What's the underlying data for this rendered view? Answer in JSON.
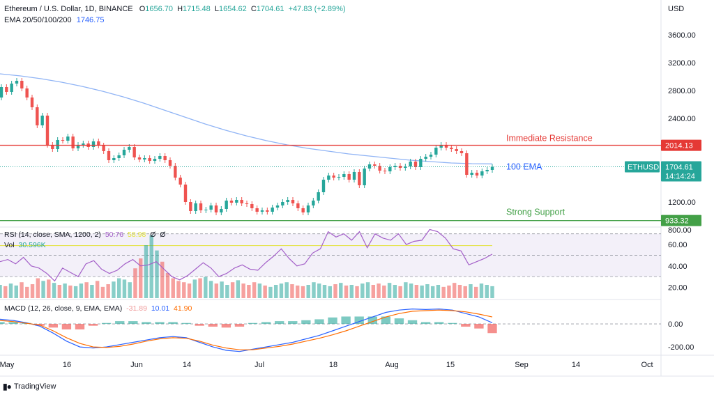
{
  "header": {
    "symbol": "Ethereum / U.S. Dollar, 1D, BINANCE",
    "o_label": "O",
    "o": "1656.70",
    "h_label": "H",
    "h": "1715.48",
    "l_label": "L",
    "l": "1654.62",
    "c_label": "C",
    "c": "1704.61",
    "change": "+47.83 (+2.89%)",
    "ema_label": "EMA 20/50/100/200",
    "ema_value": "1746.75"
  },
  "rsi_legend": {
    "label": "RSI (14, close, SMA, 1200, 2)",
    "v1": "50.76",
    "v2": "58.98",
    "v3": "Ø",
    "v4": "Ø"
  },
  "vol_legend": {
    "label": "Vol",
    "value": "30.596K"
  },
  "macd_legend": {
    "label": "MACD (12, 26, close, 9, EMA, EMA)",
    "v1": "-31.89",
    "v2": "10.01",
    "v3": "41.90"
  },
  "currency": "USD",
  "price_axis": [
    "3600.00",
    "3200.00",
    "2800.00",
    "2400.00",
    "1200.00",
    "800.00"
  ],
  "rsi_axis": [
    "60.00",
    "40.00",
    "20.00"
  ],
  "macd_axis": [
    "0.00",
    "-200.00"
  ],
  "time_axis": [
    "May",
    "16",
    "Jun",
    "14",
    "Jul",
    "18",
    "Aug",
    "15",
    "Sep",
    "14",
    "Oct"
  ],
  "annotations": {
    "resistance": "Immediate Resistance",
    "ema100": "100 EMA",
    "support": "Strong Support"
  },
  "badges": {
    "resistance": "2014.13",
    "symbol": "ETHUSD",
    "price": "1704.61",
    "countdown": "14:14:24",
    "support": "933.32"
  },
  "brand": "TradingView",
  "colors": {
    "up": "#26a69a",
    "down": "#ef5350",
    "resistance": "#e53935",
    "support": "#43a047",
    "ema": "#90b4f5",
    "rsi": "#a35fc8",
    "macd": "#2962ff",
    "signal": "#ff6d00"
  },
  "chart_data": {
    "type": "candlestick",
    "title": "Ethereum / U.S. Dollar, 1D, BINANCE",
    "price_range": [
      800,
      3600
    ],
    "levels": {
      "resistance": 2014.13,
      "support": 933.32,
      "ema100": 1746.75
    },
    "candles_approx": [
      {
        "o": 2700,
        "c": 2850
      },
      {
        "o": 2850,
        "c": 2780
      },
      {
        "o": 2780,
        "c": 2900
      },
      {
        "o": 2900,
        "c": 2940
      },
      {
        "o": 2940,
        "c": 2830
      },
      {
        "o": 2830,
        "c": 2700
      },
      {
        "o": 2700,
        "c": 2560
      },
      {
        "o": 2560,
        "c": 2300
      },
      {
        "o": 2300,
        "c": 2440
      },
      {
        "o": 2440,
        "c": 2020
      },
      {
        "o": 2020,
        "c": 1960
      },
      {
        "o": 1960,
        "c": 2090
      },
      {
        "o": 2090,
        "c": 2080
      },
      {
        "o": 2080,
        "c": 2140
      },
      {
        "o": 2140,
        "c": 1970
      },
      {
        "o": 1970,
        "c": 2020
      },
      {
        "o": 2020,
        "c": 2040
      },
      {
        "o": 2040,
        "c": 1990
      },
      {
        "o": 1990,
        "c": 2070
      },
      {
        "o": 2070,
        "c": 2010
      },
      {
        "o": 2010,
        "c": 1930
      },
      {
        "o": 1930,
        "c": 1800
      },
      {
        "o": 1800,
        "c": 1830
      },
      {
        "o": 1830,
        "c": 1870
      },
      {
        "o": 1870,
        "c": 1950
      },
      {
        "o": 1950,
        "c": 1990
      },
      {
        "o": 1990,
        "c": 1840
      },
      {
        "o": 1840,
        "c": 1810
      },
      {
        "o": 1810,
        "c": 1830
      },
      {
        "o": 1830,
        "c": 1790
      },
      {
        "o": 1790,
        "c": 1820
      },
      {
        "o": 1820,
        "c": 1860
      },
      {
        "o": 1860,
        "c": 1800
      },
      {
        "o": 1800,
        "c": 1720
      },
      {
        "o": 1720,
        "c": 1550
      },
      {
        "o": 1550,
        "c": 1450
      },
      {
        "o": 1450,
        "c": 1200
      },
      {
        "o": 1200,
        "c": 1070
      },
      {
        "o": 1070,
        "c": 1180
      },
      {
        "o": 1180,
        "c": 1080
      },
      {
        "o": 1080,
        "c": 1090
      },
      {
        "o": 1090,
        "c": 1150
      },
      {
        "o": 1150,
        "c": 1050
      },
      {
        "o": 1050,
        "c": 1100
      },
      {
        "o": 1100,
        "c": 1220
      },
      {
        "o": 1220,
        "c": 1190
      },
      {
        "o": 1190,
        "c": 1230
      },
      {
        "o": 1230,
        "c": 1180
      },
      {
        "o": 1180,
        "c": 1170
      },
      {
        "o": 1170,
        "c": 1110
      },
      {
        "o": 1110,
        "c": 1060
      },
      {
        "o": 1060,
        "c": 1080
      },
      {
        "o": 1080,
        "c": 1060
      },
      {
        "o": 1060,
        "c": 1120
      },
      {
        "o": 1120,
        "c": 1150
      },
      {
        "o": 1150,
        "c": 1200
      },
      {
        "o": 1200,
        "c": 1230
      },
      {
        "o": 1230,
        "c": 1180
      },
      {
        "o": 1180,
        "c": 1110
      },
      {
        "o": 1110,
        "c": 1050
      },
      {
        "o": 1050,
        "c": 1150
      },
      {
        "o": 1150,
        "c": 1220
      },
      {
        "o": 1220,
        "c": 1340
      },
      {
        "o": 1340,
        "c": 1520
      },
      {
        "o": 1520,
        "c": 1580
      },
      {
        "o": 1580,
        "c": 1550
      },
      {
        "o": 1550,
        "c": 1560
      },
      {
        "o": 1560,
        "c": 1600
      },
      {
        "o": 1600,
        "c": 1520
      },
      {
        "o": 1520,
        "c": 1630
      },
      {
        "o": 1630,
        "c": 1440
      },
      {
        "o": 1440,
        "c": 1680
      },
      {
        "o": 1680,
        "c": 1740
      },
      {
        "o": 1740,
        "c": 1720
      },
      {
        "o": 1720,
        "c": 1650
      },
      {
        "o": 1650,
        "c": 1640
      },
      {
        "o": 1640,
        "c": 1700
      },
      {
        "o": 1700,
        "c": 1720
      },
      {
        "o": 1720,
        "c": 1690
      },
      {
        "o": 1690,
        "c": 1710
      },
      {
        "o": 1710,
        "c": 1780
      },
      {
        "o": 1780,
        "c": 1700
      },
      {
        "o": 1700,
        "c": 1820
      },
      {
        "o": 1820,
        "c": 1850
      },
      {
        "o": 1850,
        "c": 1880
      },
      {
        "o": 1880,
        "c": 1980
      },
      {
        "o": 1980,
        "c": 2020
      },
      {
        "o": 2020,
        "c": 1980
      },
      {
        "o": 1980,
        "c": 1960
      },
      {
        "o": 1960,
        "c": 1930
      },
      {
        "o": 1930,
        "c": 1900
      },
      {
        "o": 1900,
        "c": 1590
      },
      {
        "o": 1590,
        "c": 1620
      },
      {
        "o": 1620,
        "c": 1580
      },
      {
        "o": 1580,
        "c": 1640
      },
      {
        "o": 1640,
        "c": 1660
      },
      {
        "o": 1660,
        "c": 1705
      }
    ],
    "ema100_approx": [
      3040,
      3010,
      2970,
      2920,
      2860,
      2790,
      2710,
      2620,
      2520,
      2420,
      2320,
      2230,
      2150,
      2080,
      2020,
      1970,
      1930,
      1890,
      1860,
      1830,
      1800,
      1780,
      1760,
      1750,
      1747
    ],
    "rsi_approx": [
      44,
      46,
      42,
      48,
      40,
      38,
      33,
      26,
      38,
      34,
      30,
      42,
      45,
      37,
      33,
      36,
      42,
      46,
      40,
      41,
      44,
      37,
      30,
      27,
      31,
      37,
      43,
      38,
      30,
      33,
      38,
      41,
      37,
      36,
      43,
      49,
      56,
      47,
      40,
      42,
      52,
      56,
      72,
      67,
      70,
      64,
      72,
      57,
      70,
      66,
      64,
      70,
      60,
      63,
      64,
      74,
      72,
      66,
      56,
      54,
      41,
      44,
      47,
      51
    ],
    "rsi_range": [
      10,
      75
    ],
    "volume_approx": [
      20,
      18,
      22,
      19,
      24,
      17,
      21,
      30,
      26,
      28,
      23,
      20,
      22,
      19,
      18,
      22,
      24,
      20,
      26,
      17,
      21,
      25,
      30,
      28,
      24,
      45,
      60,
      80,
      95,
      72,
      55,
      38,
      30,
      26,
      24,
      22,
      28,
      30,
      32,
      26,
      22,
      25,
      20,
      24,
      27,
      22,
      20,
      24,
      22,
      19,
      17,
      20,
      22,
      24,
      21,
      19,
      18,
      20,
      24,
      22,
      20,
      18,
      21,
      23,
      19,
      20,
      18,
      22,
      24,
      20,
      22,
      19,
      23,
      20,
      18,
      24,
      22,
      20,
      19,
      21,
      18,
      20,
      17,
      19,
      23,
      20,
      18,
      21,
      17,
      22,
      20,
      18
    ],
    "macd_line_approx": [
      40,
      30,
      10,
      -20,
      -80,
      -150,
      -200,
      -210,
      -200,
      -180,
      -160,
      -140,
      -120,
      -110,
      -120,
      -160,
      -200,
      -230,
      -240,
      -220,
      -200,
      -180,
      -160,
      -130,
      -100,
      -60,
      -20,
      20,
      60,
      100,
      120,
      130,
      125,
      130,
      120,
      90,
      60,
      10
    ],
    "signal_line_approx": [
      30,
      20,
      5,
      -10,
      -60,
      -120,
      -170,
      -200,
      -205,
      -195,
      -175,
      -150,
      -130,
      -120,
      -125,
      -150,
      -185,
      -210,
      -225,
      -225,
      -210,
      -195,
      -175,
      -150,
      -125,
      -95,
      -60,
      -20,
      20,
      60,
      90,
      110,
      115,
      120,
      115,
      105,
      85,
      60
    ],
    "macd_range": [
      -260,
      200
    ]
  }
}
